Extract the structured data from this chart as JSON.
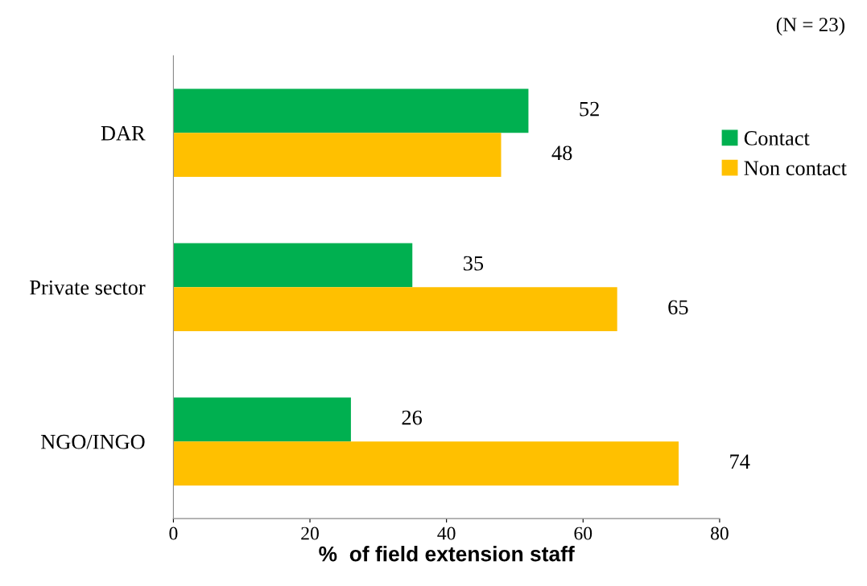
{
  "chart_data": {
    "type": "bar",
    "orientation": "horizontal",
    "xlabel": "%  of field extension staff",
    "categories": [
      "DAR",
      "Private sector",
      "NGO/INGO"
    ],
    "series": [
      {
        "name": "Contact",
        "color": "#00b050",
        "values": [
          52,
          35,
          26
        ]
      },
      {
        "name": "Non contact",
        "color": "#ffc000",
        "values": [
          48,
          65,
          74
        ]
      }
    ],
    "xlim": [
      0,
      80
    ],
    "xticks": [
      0,
      20,
      40,
      60,
      80
    ],
    "grid": false,
    "legend": "right",
    "data_labels": true,
    "annotations": [
      "(N = 23)"
    ]
  }
}
